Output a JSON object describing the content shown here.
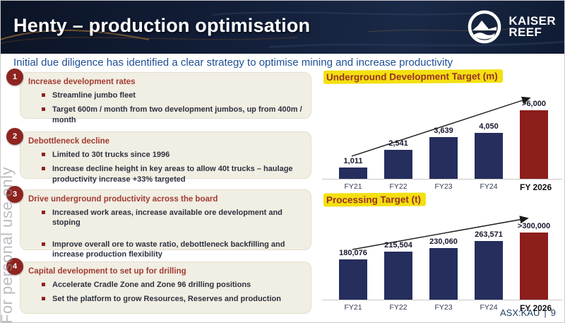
{
  "slide": {
    "title": "Henty – production optimisation",
    "subtitle": "Initial due diligence has identified a clear strategy to optimise mining and increase productivity",
    "watermark": "For personal use only",
    "footer": {
      "ticker": "ASX:KAU",
      "separator": "|",
      "page_number": "9"
    }
  },
  "logo": {
    "name": "kaiser-reef",
    "line1": "KAISER",
    "line2": "REEF",
    "icon": "mountain-wave-circle-icon"
  },
  "strategy_items": [
    {
      "number": "1",
      "heading": "Increase development rates",
      "bullets": [
        "Streamline jumbo fleet",
        "Target 600m / month from two development jumbos, up from 400m / month"
      ]
    },
    {
      "number": "2",
      "heading": "Debottleneck decline",
      "bullets": [
        "Limited to 30t trucks since 1996",
        "Increase decline height in key areas to allow 40t trucks – haulage productivity increase +33% targeted"
      ]
    },
    {
      "number": "3",
      "heading": "Drive underground productivity across the board",
      "bullets": [
        "Increased work areas, increase available ore development and stoping",
        "Improve overall ore to waste ratio, debottleneck backfilling and increase production flexibility"
      ]
    },
    {
      "number": "4",
      "heading": "Capital development to set up for drilling",
      "bullets": [
        "Accelerate Cradle Zone and Zone 96 drilling positions",
        "Set the platform to grow Resources, Reserves and production"
      ]
    }
  ],
  "chart_data": [
    {
      "type": "bar",
      "title": "Underground Development Target (m)",
      "categories": [
        "FY21",
        "FY22",
        "FY23",
        "FY24",
        "FY 2026"
      ],
      "values": [
        1011,
        2541,
        3639,
        4050,
        6000
      ],
      "value_labels": [
        "1,011",
        "2,541",
        "3,639",
        "4,050",
        ">6,000"
      ],
      "bar_colors": [
        "#252e5c",
        "#252e5c",
        "#252e5c",
        "#252e5c",
        "#8c1e1c"
      ],
      "xlabel": "",
      "ylabel": "",
      "ylim": [
        0,
        6000
      ],
      "grid": false,
      "legend": false,
      "annotation": "upward trend arrow from FY21 to FY 2026"
    },
    {
      "type": "bar",
      "title": "Processing Target (t)",
      "categories": [
        "FY21",
        "FY22",
        "FY23",
        "FY24",
        "FY 2026"
      ],
      "values": [
        180076,
        215504,
        230060,
        263571,
        300000
      ],
      "value_labels": [
        "180,076",
        "215,504",
        "230,060",
        "263,571",
        ">300,000"
      ],
      "bar_colors": [
        "#252e5c",
        "#252e5c",
        "#252e5c",
        "#252e5c",
        "#8c1e1c"
      ],
      "xlabel": "",
      "ylabel": "",
      "ylim": [
        0,
        300000
      ],
      "grid": false,
      "legend": false,
      "annotation": "upward trend arrow from FY21 to FY 2026"
    }
  ],
  "colors": {
    "header_bg": "#101b33",
    "accent_maroon": "#8e2420",
    "heading_red": "#a23b30",
    "box_bg": "#f1eee3",
    "navy_bar": "#252e5c",
    "red_bar": "#8c1e1c",
    "highlight_yellow": "#f3e011",
    "subtitle_blue": "#1e4f94",
    "footer_blue": "#1f4066",
    "watermark_gray": "#90919b"
  }
}
